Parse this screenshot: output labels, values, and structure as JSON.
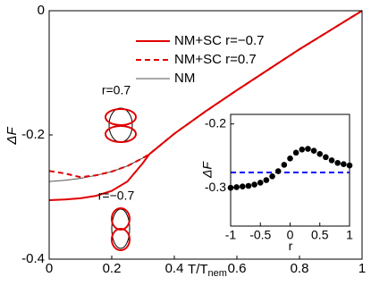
{
  "chart_data": [
    {
      "type": "line",
      "xlabel": "T/T",
      "xlabel_sub": "nem",
      "ylabel": "ΔF",
      "xlim": [
        0,
        1
      ],
      "ylim": [
        -0.4,
        0
      ],
      "xticks": [
        0,
        0.2,
        0.4,
        0.6,
        0.8,
        1
      ],
      "yticks": [
        -0.4,
        -0.2,
        0
      ],
      "x": [
        0,
        0.05,
        0.1,
        0.15,
        0.2,
        0.25,
        0.3,
        0.32,
        0.4,
        0.5,
        0.6,
        0.7,
        0.8,
        0.9,
        1
      ],
      "series": [
        {
          "name": "NM",
          "color": "#555555",
          "style": "thin",
          "values": [
            -0.275,
            -0.273,
            -0.27,
            -0.265,
            -0.259,
            -0.25,
            -0.237,
            -0.231,
            -0.198,
            -0.162,
            -0.128,
            -0.095,
            -0.062,
            -0.031,
            0
          ]
        },
        {
          "name": "NM+SC r=−0.7",
          "color": "#e00000",
          "style": "solid",
          "values": [
            -0.305,
            -0.304,
            -0.302,
            -0.298,
            -0.29,
            -0.275,
            -0.245,
            -0.231,
            -0.198,
            -0.162,
            -0.128,
            -0.095,
            -0.062,
            -0.031,
            0
          ]
        },
        {
          "name": "NM+SC r=0.7",
          "color": "#e00000",
          "style": "dashed",
          "values": [
            -0.258,
            -0.262,
            -0.268,
            -0.265,
            -0.259,
            -0.25,
            -0.237,
            -0.231,
            -0.198,
            -0.162,
            -0.128,
            -0.095,
            -0.062,
            -0.031,
            0
          ]
        }
      ],
      "legend_order": [
        1,
        2,
        0
      ],
      "annotations": [
        "r=0.7",
        "r=−0.7"
      ]
    },
    {
      "type": "line",
      "xlabel": "r",
      "ylabel": "ΔF",
      "xlim": [
        -1,
        1
      ],
      "ylim": [
        -0.36,
        -0.185
      ],
      "xticks": [
        -1,
        -0.5,
        0,
        0.5,
        1
      ],
      "yticks": [
        -0.3,
        -0.2
      ],
      "x": [
        -1,
        -0.9,
        -0.8,
        -0.7,
        -0.6,
        -0.5,
        -0.4,
        -0.3,
        -0.2,
        -0.1,
        0,
        0.1,
        0.2,
        0.3,
        0.4,
        0.5,
        0.6,
        0.7,
        0.8,
        0.9,
        1
      ],
      "series": [
        {
          "color": "#0000ff",
          "style": "dashed",
          "x": [
            -1,
            1
          ],
          "values": [
            -0.276,
            -0.276
          ]
        },
        {
          "color": "#000000",
          "style": "markers",
          "values": [
            -0.3,
            -0.299,
            -0.298,
            -0.297,
            -0.295,
            -0.292,
            -0.288,
            -0.282,
            -0.274,
            -0.264,
            -0.254,
            -0.245,
            -0.24,
            -0.239,
            -0.242,
            -0.247,
            -0.252,
            -0.257,
            -0.261,
            -0.263,
            -0.265
          ]
        }
      ]
    }
  ]
}
